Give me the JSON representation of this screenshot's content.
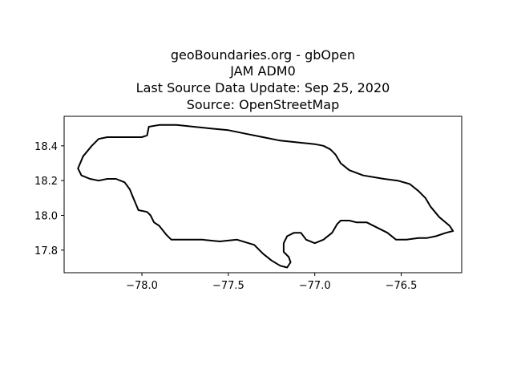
{
  "chart_data": {
    "type": "map",
    "title_lines": [
      "geoBoundaries.org - gbOpen",
      "JAM ADM0",
      "Last Source Data Update: Sep 25, 2020",
      "Source: OpenStreetMap"
    ],
    "x_ticks": [
      {
        "value": -78.0,
        "label": "−78.0"
      },
      {
        "value": -77.5,
        "label": "−77.5"
      },
      {
        "value": -77.0,
        "label": "−77.0"
      },
      {
        "value": -76.5,
        "label": "−76.5"
      }
    ],
    "y_ticks": [
      {
        "value": 17.8,
        "label": "17.8"
      },
      {
        "value": 18.0,
        "label": "18.0"
      },
      {
        "value": 18.2,
        "label": "18.2"
      },
      {
        "value": 18.4,
        "label": "18.4"
      }
    ],
    "xlim": [
      -78.45,
      -76.15
    ],
    "ylim": [
      17.67,
      18.57
    ],
    "outline": [
      [
        -78.37,
        18.27
      ],
      [
        -78.34,
        18.34
      ],
      [
        -78.29,
        18.4
      ],
      [
        -78.25,
        18.44
      ],
      [
        -78.2,
        18.45
      ],
      [
        -78.1,
        18.45
      ],
      [
        -78.0,
        18.45
      ],
      [
        -77.97,
        18.46
      ],
      [
        -77.96,
        18.51
      ],
      [
        -77.9,
        18.52
      ],
      [
        -77.8,
        18.52
      ],
      [
        -77.7,
        18.51
      ],
      [
        -77.6,
        18.5
      ],
      [
        -77.5,
        18.49
      ],
      [
        -77.4,
        18.47
      ],
      [
        -77.3,
        18.45
      ],
      [
        -77.2,
        18.43
      ],
      [
        -77.1,
        18.42
      ],
      [
        -77.0,
        18.41
      ],
      [
        -76.95,
        18.4
      ],
      [
        -76.91,
        18.38
      ],
      [
        -76.88,
        18.35
      ],
      [
        -76.85,
        18.3
      ],
      [
        -76.8,
        18.26
      ],
      [
        -76.72,
        18.23
      ],
      [
        -76.6,
        18.21
      ],
      [
        -76.52,
        18.2
      ],
      [
        -76.45,
        18.18
      ],
      [
        -76.4,
        18.14
      ],
      [
        -76.36,
        18.1
      ],
      [
        -76.33,
        18.05
      ],
      [
        -76.28,
        17.99
      ],
      [
        -76.22,
        17.94
      ],
      [
        -76.2,
        17.91
      ],
      [
        -76.24,
        17.9
      ],
      [
        -76.3,
        17.88
      ],
      [
        -76.35,
        17.87
      ],
      [
        -76.4,
        17.87
      ],
      [
        -76.47,
        17.86
      ],
      [
        -76.53,
        17.86
      ],
      [
        -76.58,
        17.9
      ],
      [
        -76.64,
        17.93
      ],
      [
        -76.7,
        17.96
      ],
      [
        -76.76,
        17.96
      ],
      [
        -76.8,
        17.97
      ],
      [
        -76.85,
        17.97
      ],
      [
        -76.87,
        17.95
      ],
      [
        -76.9,
        17.9
      ],
      [
        -76.95,
        17.86
      ],
      [
        -77.0,
        17.84
      ],
      [
        -77.05,
        17.86
      ],
      [
        -77.08,
        17.9
      ],
      [
        -77.12,
        17.9
      ],
      [
        -77.16,
        17.88
      ],
      [
        -77.18,
        17.84
      ],
      [
        -77.18,
        17.79
      ],
      [
        -77.15,
        17.76
      ],
      [
        -77.14,
        17.73
      ],
      [
        -77.16,
        17.7
      ],
      [
        -77.2,
        17.71
      ],
      [
        -77.25,
        17.74
      ],
      [
        -77.3,
        17.78
      ],
      [
        -77.35,
        17.83
      ],
      [
        -77.45,
        17.86
      ],
      [
        -77.55,
        17.85
      ],
      [
        -77.65,
        17.86
      ],
      [
        -77.75,
        17.86
      ],
      [
        -77.83,
        17.86
      ],
      [
        -77.86,
        17.89
      ],
      [
        -77.9,
        17.94
      ],
      [
        -77.93,
        17.96
      ],
      [
        -77.95,
        18.0
      ],
      [
        -77.97,
        18.02
      ],
      [
        -78.02,
        18.03
      ],
      [
        -78.05,
        18.1
      ],
      [
        -78.07,
        18.15
      ],
      [
        -78.1,
        18.19
      ],
      [
        -78.15,
        18.21
      ],
      [
        -78.2,
        18.21
      ],
      [
        -78.25,
        18.2
      ],
      [
        -78.3,
        18.21
      ],
      [
        -78.35,
        18.23
      ],
      [
        -78.37,
        18.27
      ]
    ]
  }
}
